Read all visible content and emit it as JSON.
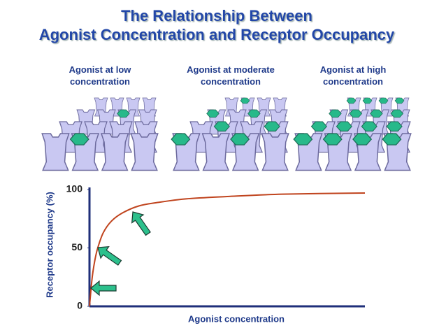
{
  "chart_data": {
    "type": "line",
    "title": "The Relationship Between Agonist Concentration and Receptor Occupancy",
    "panels": [
      "Agonist at low concentration",
      "Agonist at moderate concentration",
      "Agonist at high concentration"
    ],
    "xlabel": "Agonist concentration",
    "ylabel": "Receptor occupancy (%)",
    "x": [
      0,
      1,
      2,
      3,
      5,
      8,
      12,
      18,
      25,
      35,
      50,
      70,
      100
    ],
    "values": [
      0,
      25,
      40,
      50,
      63,
      73,
      80,
      86,
      89,
      92,
      94,
      96,
      97
    ],
    "color": "#c0441e",
    "xlim": [
      0,
      100
    ],
    "ylim": [
      0,
      100
    ],
    "yticks": [
      0,
      50,
      100
    ]
  }
}
